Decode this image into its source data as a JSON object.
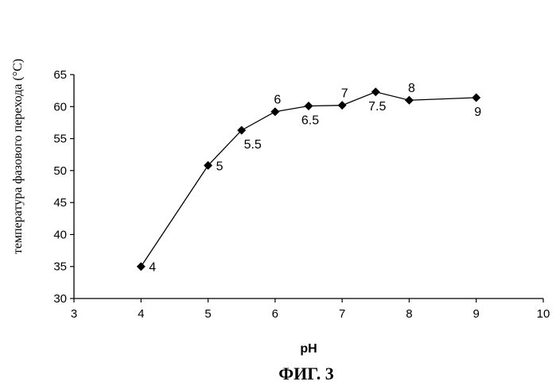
{
  "chart_data": {
    "type": "scatter",
    "mode": "lines+markers",
    "xlabel": "pH",
    "ylabel": "температура фазового перехода  (°C)",
    "caption": "ФИГ. 3",
    "xlim": [
      3,
      10
    ],
    "ylim": [
      30,
      65
    ],
    "xticks": [
      3,
      4,
      5,
      6,
      7,
      8,
      9,
      10
    ],
    "yticks": [
      30,
      35,
      40,
      45,
      50,
      55,
      60,
      65
    ],
    "grid": false,
    "legend": "none",
    "series": [
      {
        "marker": "diamond",
        "color": "#000000",
        "points": [
          {
            "x": 4,
            "y": 35,
            "label": "4"
          },
          {
            "x": 5,
            "y": 50.8,
            "label": "5"
          },
          {
            "x": 5.5,
            "y": 56.3,
            "label": "5.5"
          },
          {
            "x": 6,
            "y": 59.2,
            "label": "6"
          },
          {
            "x": 6.5,
            "y": 60.1,
            "label": "6.5"
          },
          {
            "x": 7,
            "y": 60.2,
            "label": "7"
          },
          {
            "x": 7.5,
            "y": 62.3,
            "label": "7.5"
          },
          {
            "x": 8,
            "y": 61,
            "label": "8"
          },
          {
            "x": 9,
            "y": 61.4,
            "label": "9"
          }
        ]
      }
    ]
  }
}
